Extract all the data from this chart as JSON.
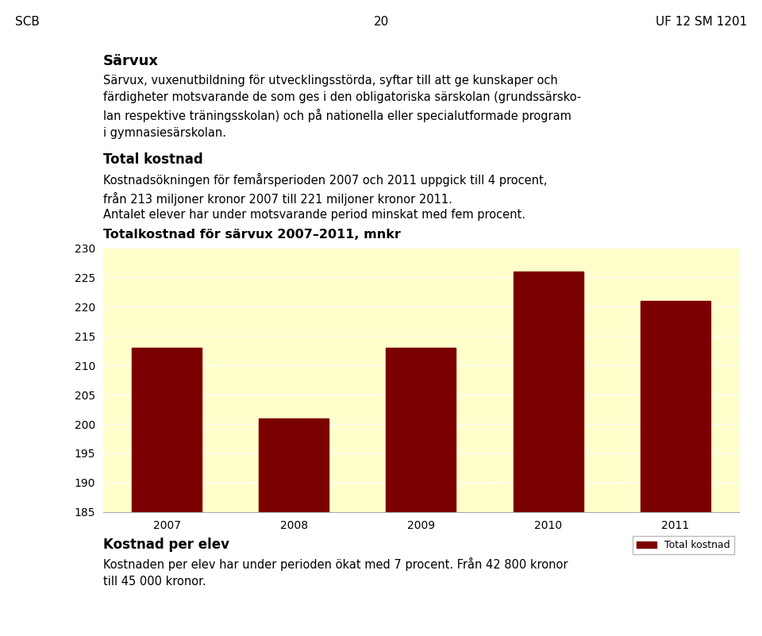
{
  "header_left": "SCB",
  "header_center": "20",
  "header_right": "UF 12 SM 1201",
  "section_title": "Särvux",
  "section_body": "Särvux, vuxenutbildning för utvecklingsstörda, syftar till att ge kunskaper och färdigheter motsvarande de som ges i den obligatoriska särskolan (grundssärsko-\nlan respektive träningsskolan) och på nationella eller specialutformade program\ni gymnasiesärskolan.",
  "subsection_title": "Total kostnad",
  "subsection_body": "Kostnadsökningen för femårsperioden 2007 och 2011 uppgick till 4 procent,\nfrån 213 miljoner kronor 2007 till 221 miljoner kronor 2011.",
  "extra_line": "Antalet elever har under motsvarande period minskat med fem procent.",
  "chart_title": "Totalkostnad för särvux 2007–2011, mnkr",
  "categories": [
    "2007",
    "2008",
    "2009",
    "2010",
    "2011"
  ],
  "values": [
    213,
    201,
    213,
    226,
    221
  ],
  "bar_color": "#7B0000",
  "plot_bg_color": "#FFFFCC",
  "ylim": [
    185,
    230
  ],
  "yticks": [
    185,
    190,
    195,
    200,
    205,
    210,
    215,
    220,
    225,
    230
  ],
  "legend_label": "Total kostnad",
  "footer_title": "Kostnad per elev",
  "footer_body": "Kostnaden per elev har under perioden ökat med 7 procent. Från 42 800 kronor\ntill 45 000 kronor."
}
